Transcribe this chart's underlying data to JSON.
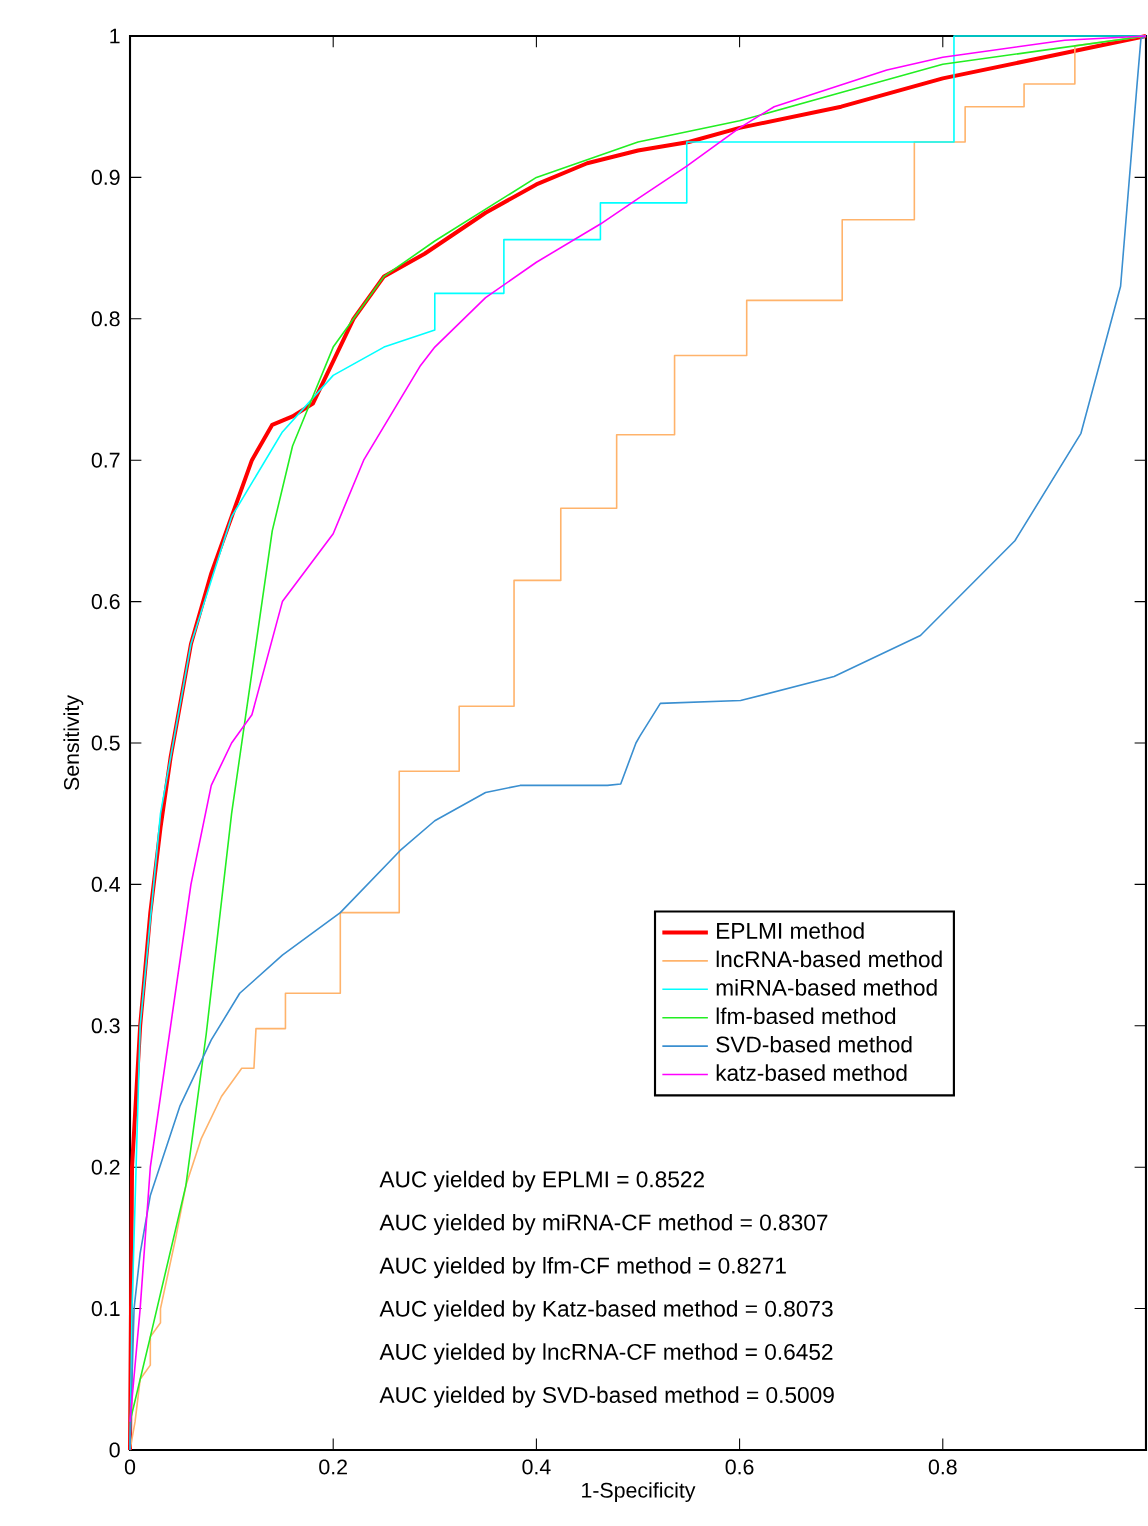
{
  "chart_data": {
    "type": "line",
    "xlabel": "1-Specificity",
    "ylabel": "Sensitivity",
    "xlim": [
      0,
      1
    ],
    "ylim": [
      0,
      1
    ],
    "xticks": [
      0,
      0.2,
      0.4,
      0.6,
      0.8,
      {
        "value": 1,
        "label": null
      }
    ],
    "yticks": [
      0,
      0.1,
      0.2,
      0.3,
      0.4,
      0.5,
      0.6,
      0.7,
      0.8,
      0.9,
      1
    ],
    "legend": "bottom right",
    "grid": false,
    "marker": "none",
    "line_style": "solid",
    "series": [
      {
        "name": "EPLMI method",
        "color": "#ff0000",
        "x": [
          0,
          0.002,
          0.01,
          0.02,
          0.03,
          0.04,
          0.05,
          0.06,
          0.08,
          0.1,
          0.12,
          0.14,
          0.16,
          0.18,
          0.2,
          0.22,
          0.25,
          0.29,
          0.35,
          0.4,
          0.45,
          0.5,
          0.55,
          0.6,
          0.7,
          0.8,
          0.9,
          1
        ],
        "values": [
          0,
          0.2,
          0.3,
          0.38,
          0.44,
          0.49,
          0.53,
          0.57,
          0.62,
          0.66,
          0.7,
          0.725,
          0.731,
          0.74,
          0.77,
          0.8,
          0.83,
          0.846,
          0.875,
          0.895,
          0.91,
          0.919,
          0.925,
          0.935,
          0.95,
          0.97,
          0.985,
          1
        ]
      },
      {
        "name": "lncRNA-based method",
        "color": "#ffb36b",
        "x": [
          0,
          0.005,
          0.01,
          0.02,
          0.02,
          0.03,
          0.03,
          0.045,
          0.055,
          0.07,
          0.09,
          0.11,
          0.122,
          0.124,
          0.153,
          0.153,
          0.207,
          0.207,
          0.265,
          0.265,
          0.324,
          0.324,
          0.378,
          0.378,
          0.424,
          0.424,
          0.479,
          0.479,
          0.536,
          0.536,
          0.607,
          0.607,
          0.701,
          0.701,
          0.772,
          0.772,
          0.822,
          0.822,
          0.88,
          0.88,
          0.93,
          0.93,
          1
        ],
        "values": [
          0,
          0.02,
          0.05,
          0.06,
          0.08,
          0.09,
          0.1,
          0.15,
          0.187,
          0.22,
          0.25,
          0.27,
          0.27,
          0.298,
          0.298,
          0.323,
          0.323,
          0.38,
          0.38,
          0.48,
          0.48,
          0.526,
          0.526,
          0.615,
          0.615,
          0.666,
          0.666,
          0.718,
          0.718,
          0.774,
          0.774,
          0.813,
          0.813,
          0.87,
          0.87,
          0.925,
          0.925,
          0.95,
          0.95,
          0.966,
          0.966,
          0.993,
          1
        ]
      },
      {
        "name": "miRNA-based method",
        "color": "#00ffff",
        "x": [
          0,
          0.002,
          0.01,
          0.03,
          0.06,
          0.1,
          0.15,
          0.2,
          0.25,
          0.3,
          0.3,
          0.368,
          0.368,
          0.463,
          0.463,
          0.548,
          0.548,
          0.811,
          0.811,
          1
        ],
        "values": [
          0,
          0.1,
          0.3,
          0.45,
          0.57,
          0.66,
          0.72,
          0.76,
          0.78,
          0.792,
          0.818,
          0.818,
          0.856,
          0.856,
          0.882,
          0.882,
          0.925,
          0.925,
          1,
          1
        ]
      },
      {
        "name": "lfm-based method",
        "color": "#22ee22",
        "x": [
          0,
          0.02,
          0.055,
          0.075,
          0.1,
          0.12,
          0.14,
          0.16,
          0.18,
          0.2,
          0.22,
          0.25,
          0.3,
          0.4,
          0.5,
          0.6,
          0.7,
          0.8,
          0.9,
          1
        ],
        "values": [
          0.02,
          0.08,
          0.187,
          0.294,
          0.45,
          0.55,
          0.65,
          0.71,
          0.745,
          0.78,
          0.8,
          0.83,
          0.855,
          0.9,
          0.925,
          0.94,
          0.96,
          0.98,
          0.99,
          1
        ]
      },
      {
        "name": "SVD-based method",
        "color": "#3a8fd0",
        "x": [
          0,
          0.004,
          0.01,
          0.02,
          0.049,
          0.08,
          0.108,
          0.15,
          0.207,
          0.266,
          0.3,
          0.35,
          0.384,
          0.47,
          0.483,
          0.498,
          0.502,
          0.522,
          0.601,
          0.693,
          0.778,
          0.871,
          0.936,
          0.975,
          0.991,
          0.995,
          1
        ],
        "values": [
          0,
          0.1,
          0.139,
          0.18,
          0.243,
          0.29,
          0.323,
          0.35,
          0.38,
          0.424,
          0.445,
          0.465,
          0.47,
          0.47,
          0.471,
          0.5,
          0.505,
          0.528,
          0.53,
          0.547,
          0.576,
          0.643,
          0.719,
          0.823,
          0.964,
          0.998,
          1
        ]
      },
      {
        "name": "katz-based method",
        "color": "#ff00ff",
        "x": [
          0,
          0.01,
          0.02,
          0.04,
          0.06,
          0.08,
          0.1,
          0.12,
          0.15,
          0.2,
          0.23,
          0.286,
          0.3,
          0.35,
          0.4,
          0.463,
          0.5,
          0.548,
          0.6,
          0.634,
          0.745,
          0.8,
          0.92,
          1
        ],
        "values": [
          0.02,
          0.1,
          0.2,
          0.3,
          0.4,
          0.47,
          0.5,
          0.52,
          0.6,
          0.648,
          0.7,
          0.767,
          0.78,
          0.815,
          0.84,
          0.867,
          0.885,
          0.908,
          0.935,
          0.95,
          0.976,
          0.985,
          0.997,
          1
        ]
      }
    ],
    "annotations": [
      "AUC yielded by EPLMI = 0.8522",
      "AUC yielded by miRNA-CF method = 0.8307",
      "AUC yielded by lfm-CF method = 0.8271",
      "AUC yielded by Katz-based method = 0.8073",
      "AUC yielded by lncRNA-CF method = 0.6452",
      "AUC yielded by SVD-based method = 0.5009"
    ]
  }
}
